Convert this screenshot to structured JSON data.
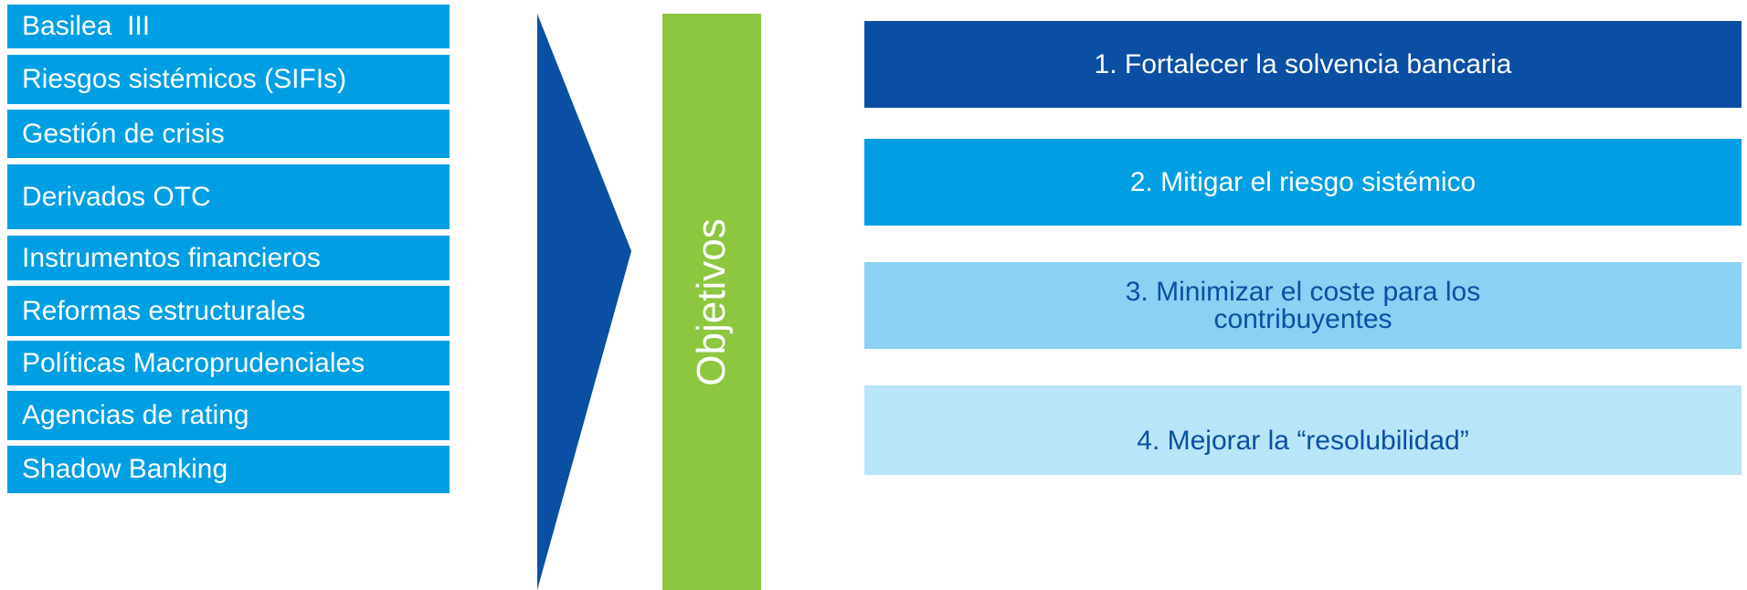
{
  "topics": [
    "Basilea  III",
    "Riesgos sistémicos (SIFIs)",
    "Gestión de crisis",
    "Derivados OTC",
    "Instrumentos financieros",
    "Reformas estructurales",
    "Políticas Macroprudenciales",
    "Agencias de rating",
    "Shadow Banking"
  ],
  "objectives_label": "Objetivos",
  "goals": [
    "1. Fortalecer la solvencia bancaria",
    "2. Mitigar el riesgo sistémico",
    "3. Minimizar el coste para los contribuyentes",
    "4. Mejorar la “resolubilidad”"
  ],
  "colors": {
    "topic_bg": "#009fe3",
    "arrow": "#0a4fa3",
    "objectives_bar": "#8dc63f",
    "goal_1": "#0a4fa3",
    "goal_2": "#009fe3",
    "goal_3": "#8ad1f3",
    "goal_4": "#b9e5f8"
  }
}
